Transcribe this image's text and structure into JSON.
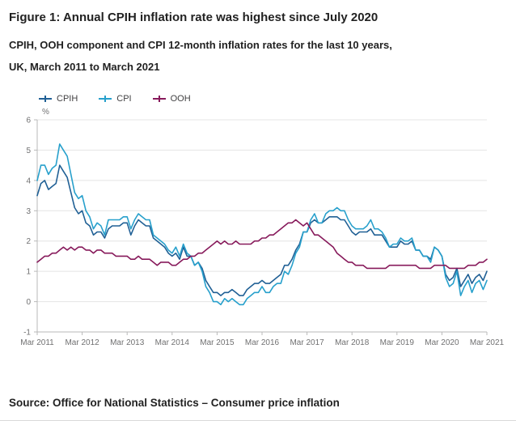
{
  "title": "Figure 1: Annual CPIH inflation rate was highest since July 2020",
  "subtitle": "CPIH, OOH component and CPI 12-month inflation rates for the last 10 years, UK, March 2011 to March 2021",
  "source": "Source: Office for National Statistics – Consumer price inflation",
  "colors": {
    "cpih": "#206095",
    "cpi": "#27a0cc",
    "ooh": "#871a5b",
    "axis": "#b9b9b9",
    "grid": "#e4e4e4",
    "tick_text": "#707071"
  },
  "chart_data": {
    "type": "line",
    "title": "CPIH, OOH component and CPI 12-month inflation rates, UK, March 2011 to March 2021",
    "xlabel": "",
    "ylabel": "%",
    "ylim": [
      -1,
      6
    ],
    "yticks": [
      -1,
      0,
      1,
      2,
      3,
      4,
      5,
      6
    ],
    "grid": "horizontal",
    "legend_position": "top-left",
    "x_frequency": "monthly",
    "x_start": "Mar 2011",
    "x_end": "Mar 2021",
    "xticklabels": [
      "Mar 2011",
      "Mar 2012",
      "Mar 2013",
      "Mar 2014",
      "Mar 2015",
      "Mar 2016",
      "Mar 2017",
      "Mar 2018",
      "Mar 2019",
      "Mar 2020",
      "Mar 2021"
    ],
    "xtick_month_interval": 12,
    "series": [
      {
        "name": "CPIH",
        "color": "#206095",
        "values": [
          3.5,
          3.9,
          4.0,
          3.7,
          3.8,
          3.9,
          4.5,
          4.3,
          4.1,
          3.6,
          3.1,
          2.9,
          3.0,
          2.6,
          2.5,
          2.2,
          2.3,
          2.3,
          2.1,
          2.4,
          2.5,
          2.5,
          2.5,
          2.6,
          2.6,
          2.2,
          2.5,
          2.7,
          2.6,
          2.5,
          2.5,
          2.1,
          2.0,
          1.9,
          1.8,
          1.6,
          1.5,
          1.6,
          1.4,
          1.8,
          1.5,
          1.5,
          1.2,
          1.3,
          1.1,
          0.7,
          0.5,
          0.3,
          0.3,
          0.2,
          0.3,
          0.3,
          0.4,
          0.3,
          0.2,
          0.2,
          0.4,
          0.5,
          0.6,
          0.6,
          0.7,
          0.6,
          0.6,
          0.7,
          0.8,
          0.9,
          1.2,
          1.2,
          1.4,
          1.7,
          1.9,
          2.3,
          2.3,
          2.6,
          2.7,
          2.6,
          2.6,
          2.7,
          2.8,
          2.8,
          2.8,
          2.7,
          2.7,
          2.5,
          2.3,
          2.2,
          2.3,
          2.3,
          2.3,
          2.4,
          2.2,
          2.2,
          2.2,
          2.0,
          1.8,
          1.8,
          1.8,
          2.0,
          1.9,
          1.9,
          2.0,
          1.7,
          1.7,
          1.5,
          1.5,
          1.4,
          1.8,
          1.7,
          1.5,
          0.9,
          0.7,
          0.8,
          1.1,
          0.5,
          0.7,
          0.9,
          0.6,
          0.8,
          0.9,
          0.7,
          1.0
        ]
      },
      {
        "name": "CPI",
        "color": "#27a0cc",
        "values": [
          4.0,
          4.5,
          4.5,
          4.2,
          4.4,
          4.5,
          5.2,
          5.0,
          4.8,
          4.2,
          3.6,
          3.4,
          3.5,
          3.0,
          2.8,
          2.4,
          2.6,
          2.5,
          2.2,
          2.7,
          2.7,
          2.7,
          2.7,
          2.8,
          2.8,
          2.4,
          2.7,
          2.9,
          2.8,
          2.7,
          2.7,
          2.2,
          2.1,
          2.0,
          1.9,
          1.7,
          1.6,
          1.8,
          1.5,
          1.9,
          1.6,
          1.5,
          1.2,
          1.3,
          1.0,
          0.5,
          0.3,
          0.0,
          0.0,
          -0.1,
          0.1,
          0.0,
          0.1,
          0.0,
          -0.1,
          -0.1,
          0.1,
          0.2,
          0.3,
          0.3,
          0.5,
          0.3,
          0.3,
          0.5,
          0.6,
          0.6,
          1.0,
          0.9,
          1.2,
          1.6,
          1.8,
          2.3,
          2.3,
          2.7,
          2.9,
          2.6,
          2.6,
          2.9,
          3.0,
          3.0,
          3.1,
          3.0,
          3.0,
          2.7,
          2.5,
          2.4,
          2.4,
          2.4,
          2.5,
          2.7,
          2.4,
          2.4,
          2.3,
          2.1,
          1.8,
          1.9,
          1.9,
          2.1,
          2.0,
          2.0,
          2.1,
          1.7,
          1.7,
          1.5,
          1.5,
          1.3,
          1.8,
          1.7,
          1.5,
          0.8,
          0.5,
          0.6,
          1.0,
          0.2,
          0.5,
          0.7,
          0.3,
          0.6,
          0.7,
          0.4,
          0.7
        ]
      },
      {
        "name": "OOH",
        "color": "#871a5b",
        "values": [
          1.3,
          1.4,
          1.5,
          1.5,
          1.6,
          1.6,
          1.7,
          1.8,
          1.7,
          1.8,
          1.7,
          1.8,
          1.8,
          1.7,
          1.7,
          1.6,
          1.7,
          1.7,
          1.6,
          1.6,
          1.6,
          1.5,
          1.5,
          1.5,
          1.5,
          1.4,
          1.4,
          1.5,
          1.4,
          1.4,
          1.4,
          1.3,
          1.2,
          1.3,
          1.3,
          1.3,
          1.2,
          1.2,
          1.3,
          1.4,
          1.4,
          1.5,
          1.5,
          1.6,
          1.6,
          1.7,
          1.8,
          1.9,
          2.0,
          1.9,
          2.0,
          1.9,
          1.9,
          2.0,
          1.9,
          1.9,
          1.9,
          1.9,
          2.0,
          2.0,
          2.1,
          2.1,
          2.2,
          2.2,
          2.3,
          2.4,
          2.5,
          2.6,
          2.6,
          2.7,
          2.6,
          2.5,
          2.6,
          2.4,
          2.2,
          2.2,
          2.1,
          2.0,
          1.9,
          1.8,
          1.6,
          1.5,
          1.4,
          1.3,
          1.3,
          1.2,
          1.2,
          1.2,
          1.1,
          1.1,
          1.1,
          1.1,
          1.1,
          1.1,
          1.2,
          1.2,
          1.2,
          1.2,
          1.2,
          1.2,
          1.2,
          1.2,
          1.1,
          1.1,
          1.1,
          1.1,
          1.2,
          1.2,
          1.2,
          1.2,
          1.1,
          1.1,
          1.1,
          1.1,
          1.1,
          1.2,
          1.2,
          1.2,
          1.3,
          1.3,
          1.4
        ]
      }
    ]
  }
}
